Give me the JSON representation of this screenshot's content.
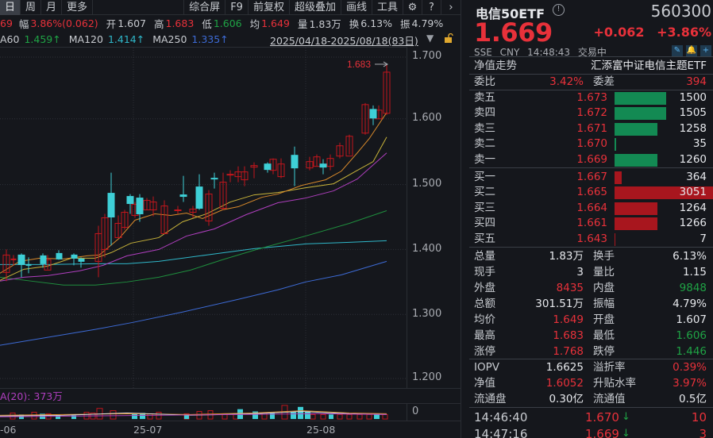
{
  "toolbar": {
    "periods": [
      "日",
      "周",
      "月",
      "更多"
    ],
    "active_period": "日",
    "tools": [
      "综合屏",
      "F9",
      "前复权",
      "超级叠加",
      "画线",
      "工具"
    ],
    "icons": [
      "gear-icon",
      "help-icon",
      "chevron-right-icon"
    ]
  },
  "quote_line": {
    "prefix_cut": "69",
    "change_pct_label": "幅",
    "change_pct": "3.86%(0.062)",
    "open_label": "开",
    "open": "1.607",
    "high_label": "高",
    "high": "1.683",
    "low_label": "低",
    "low": "1.606",
    "avg_label": "均",
    "avg": "1.649",
    "volume_label": "量",
    "volume": "1.83万",
    "turnover_label": "换",
    "turnover": "6.13%",
    "amplitude_label": "振",
    "amplitude": "4.79%"
  },
  "ma_line": {
    "ma60_label": "A60",
    "ma60": "1.459↑",
    "ma120_label": "MA120",
    "ma120": "1.414↑",
    "ma250_label": "MA250",
    "ma250": "1.335↑"
  },
  "date_range": "2025/04/18-2025/08/18(83日)",
  "chart_data": {
    "type": "candlestick",
    "title": "电信50ETF 日K",
    "y_ticks": [
      "1.700",
      "1.600",
      "1.500",
      "1.400",
      "1.300",
      "1.200"
    ],
    "ylim": [
      1.18,
      1.71
    ],
    "x_ticks": [
      "25-06",
      "25-07",
      "25-08"
    ],
    "high_annotation": "1.683",
    "volume_ma_label": "A(20): 373万",
    "volume_axis_zero": "0",
    "colors": {
      "up": "#c4161c",
      "down": "#3ecfd6",
      "ma5": "#d98a2b",
      "ma10": "#c9b43a",
      "ma20": "#b03fbf",
      "ma60": "#1f8f3e",
      "ma120": "#2fb7c9",
      "ma250": "#3d6bd6"
    }
  },
  "volume_panel": {
    "label": "A(20): 373万",
    "zero": "0"
  },
  "x_axis": [
    "-06",
    "25-07",
    "25-08"
  ],
  "panel": {
    "name": "电信50ETF",
    "code": "560300",
    "price": "1.669",
    "change": "+0.062",
    "change_pct": "+3.86%",
    "exchange": "SSE",
    "currency": "CNY",
    "time": "14:48:43",
    "status": "交易中",
    "nav_trend_label": "净值走势",
    "fund_full_name": "汇添富中证电信主题ETF",
    "weibi_label": "委比",
    "weibi": "3.42%",
    "weicha_label": "委差",
    "weicha": "394"
  },
  "asks": [
    {
      "label": "卖五",
      "price": "1.673",
      "volume": "1500",
      "bar": 65
    },
    {
      "label": "卖四",
      "price": "1.672",
      "volume": "1505",
      "bar": 65
    },
    {
      "label": "卖三",
      "price": "1.671",
      "volume": "1258",
      "bar": 54
    },
    {
      "label": "卖二",
      "price": "1.670",
      "volume": "35",
      "bar": 2
    },
    {
      "label": "卖一",
      "price": "1.669",
      "volume": "1260",
      "bar": 54
    }
  ],
  "bids": [
    {
      "label": "买一",
      "price": "1.667",
      "volume": "364",
      "bar": 9
    },
    {
      "label": "买二",
      "price": "1.665",
      "volume": "3051",
      "bar": 131
    },
    {
      "label": "买三",
      "price": "1.664",
      "volume": "1264",
      "bar": 54
    },
    {
      "label": "买四",
      "price": "1.661",
      "volume": "1266",
      "bar": 54
    },
    {
      "label": "买五",
      "price": "1.643",
      "volume": "7",
      "bar": 1
    }
  ],
  "stats": [
    {
      "l1": "总量",
      "v1": "1.83万",
      "c1": "grey",
      "l2": "换手",
      "v2": "6.13%",
      "c2": "grey"
    },
    {
      "l1": "现手",
      "v1": "3",
      "c1": "grey",
      "l2": "量比",
      "v2": "1.15",
      "c2": "grey"
    },
    {
      "l1": "外盘",
      "v1": "8435",
      "c1": "red",
      "l2": "内盘",
      "v2": "9848",
      "c2": "green"
    },
    {
      "l1": "总额",
      "v1": "301.51万",
      "c1": "grey",
      "l2": "振幅",
      "v2": "4.79%",
      "c2": "grey"
    },
    {
      "l1": "均价",
      "v1": "1.649",
      "c1": "red",
      "l2": "开盘",
      "v2": "1.607",
      "c2": "grey"
    },
    {
      "l1": "最高",
      "v1": "1.683",
      "c1": "red",
      "l2": "最低",
      "v2": "1.606",
      "c2": "green"
    },
    {
      "l1": "涨停",
      "v1": "1.768",
      "c1": "red",
      "l2": "跌停",
      "v2": "1.446",
      "c2": "green"
    }
  ],
  "etf_stats": [
    {
      "l1": "IOPV",
      "v1": "1.6625",
      "c1": "grey",
      "l2": "溢折率",
      "v2": "0.39%",
      "c2": "red"
    },
    {
      "l1": "净值",
      "v1": "1.6052",
      "c1": "red",
      "l2": "升贴水率",
      "v2": "3.97%",
      "c2": "red"
    },
    {
      "l1": "流通盘",
      "v1": "0.30亿",
      "c1": "grey",
      "l2": "流通值",
      "v2": "0.5亿",
      "c2": "grey"
    }
  ],
  "ticks": [
    {
      "time": "14:46:40",
      "price": "1.670",
      "dir": "↓",
      "vol": "10"
    },
    {
      "time": "14:47:16",
      "price": "1.669",
      "dir": "↓",
      "vol": "3"
    }
  ]
}
